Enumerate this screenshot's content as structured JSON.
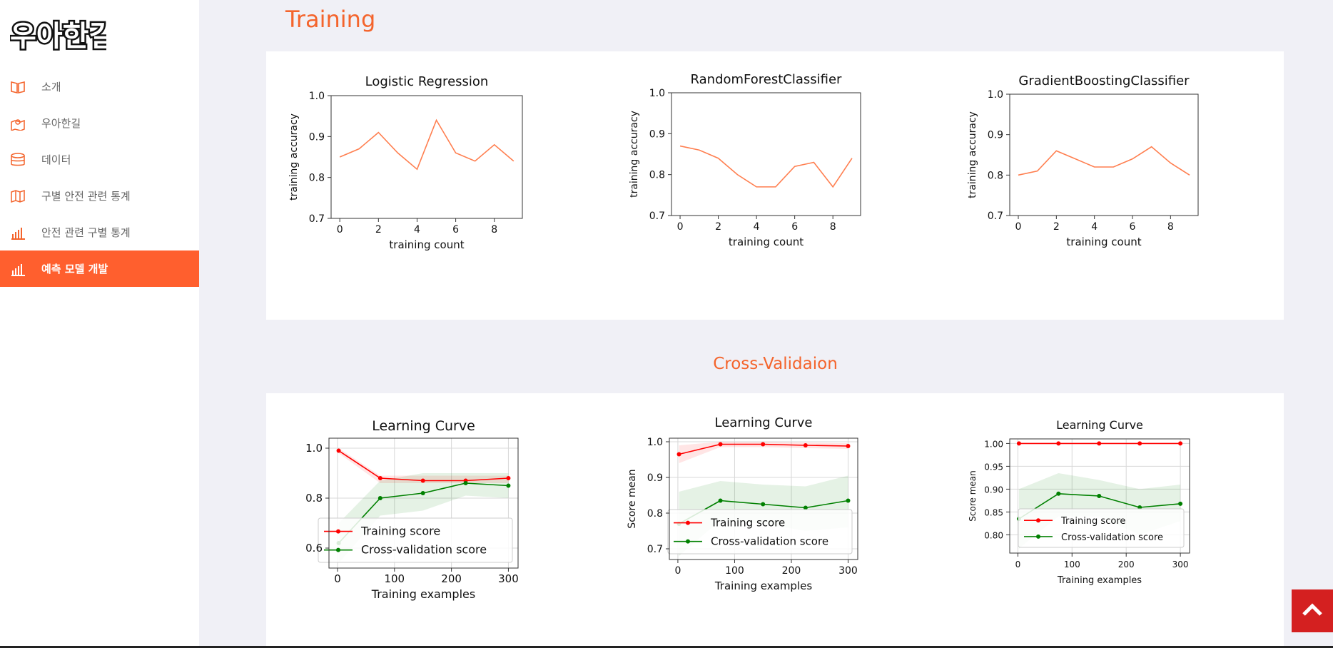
{
  "logo_text": "우아한길",
  "nav": [
    {
      "label": "소개",
      "icon": "book-icon"
    },
    {
      "label": "우아한길",
      "icon": "map-pin-icon"
    },
    {
      "label": "데이터",
      "icon": "database-icon"
    },
    {
      "label": "구별 안전 관련 통계",
      "icon": "map-icon"
    },
    {
      "label": "안전 관련 구별 통계",
      "icon": "bar-chart-icon"
    },
    {
      "label": "예측 모델 개발",
      "icon": "bar-chart-icon",
      "active": true
    }
  ],
  "sections": {
    "training": "Training",
    "cross_validation": "Cross-Validaion"
  },
  "colors": {
    "accent": "#ff5f2e",
    "line": "#ff7f50",
    "train": "#ff0000",
    "cv": "#008000",
    "top_button": "#d42020"
  },
  "chart_data": [
    {
      "type": "line",
      "title": "Logistic Regression",
      "xlabel": "training count",
      "ylabel": "training accuracy",
      "x": [
        0,
        1,
        2,
        3,
        4,
        5,
        6,
        7,
        8,
        9
      ],
      "values": [
        0.85,
        0.87,
        0.91,
        0.86,
        0.82,
        0.94,
        0.86,
        0.84,
        0.88,
        0.84
      ],
      "xlim": [
        -0.45,
        9.45
      ],
      "ylim": [
        0.7,
        1.0
      ],
      "xticks": [
        "0",
        "2",
        "4",
        "6",
        "8"
      ],
      "yticks": [
        "0.7",
        "0.8",
        "0.9",
        "1.0"
      ],
      "grid": false
    },
    {
      "type": "line",
      "title": "RandomForestClassifier",
      "xlabel": "training count",
      "ylabel": "training accuracy",
      "x": [
        0,
        1,
        2,
        3,
        4,
        5,
        6,
        7,
        8,
        9
      ],
      "values": [
        0.87,
        0.86,
        0.84,
        0.8,
        0.77,
        0.77,
        0.82,
        0.83,
        0.77,
        0.84
      ],
      "xlim": [
        -0.45,
        9.45
      ],
      "ylim": [
        0.7,
        1.0
      ],
      "xticks": [
        "0",
        "2",
        "4",
        "6",
        "8"
      ],
      "yticks": [
        "0.7",
        "0.8",
        "0.9",
        "1.0"
      ],
      "grid": false
    },
    {
      "type": "line",
      "title": "GradientBoostingClassifier",
      "xlabel": "training count",
      "ylabel": "training accuracy",
      "x": [
        0,
        1,
        2,
        3,
        4,
        5,
        6,
        7,
        8,
        9
      ],
      "values": [
        0.8,
        0.81,
        0.86,
        0.84,
        0.82,
        0.82,
        0.84,
        0.87,
        0.83,
        0.8
      ],
      "xlim": [
        -0.45,
        9.45
      ],
      "ylim": [
        0.7,
        1.0
      ],
      "xticks": [
        "0",
        "2",
        "4",
        "6",
        "8"
      ],
      "yticks": [
        "0.7",
        "0.8",
        "0.9",
        "1.0"
      ],
      "grid": false
    },
    {
      "type": "line",
      "title": "Learning Curve",
      "xlabel": "Training examples",
      "ylabel": "",
      "x": [
        2,
        75,
        150,
        225,
        300
      ],
      "series": [
        {
          "name": "Training score",
          "values": [
            0.99,
            0.88,
            0.87,
            0.87,
            0.88
          ],
          "band_low": [
            0.98,
            0.86,
            0.86,
            0.86,
            0.86
          ],
          "band_high": [
            1.0,
            0.89,
            0.89,
            0.89,
            0.89
          ]
        },
        {
          "name": "Cross-validation score",
          "values": [
            0.62,
            0.8,
            0.82,
            0.86,
            0.85
          ],
          "band_low": [
            0.54,
            0.73,
            0.75,
            0.81,
            0.8
          ],
          "band_high": [
            0.7,
            0.87,
            0.9,
            0.9,
            0.9
          ]
        }
      ],
      "xlim": [
        -15,
        317
      ],
      "ylim": [
        0.52,
        1.04
      ],
      "xticks": [
        "0",
        "100",
        "200",
        "300"
      ],
      "yticks": [
        "0.6",
        "0.8",
        "1.0"
      ],
      "grid": true,
      "legend": "lower-right"
    },
    {
      "type": "line",
      "title": "Learning Curve",
      "xlabel": "Training examples",
      "ylabel": "Score mean",
      "x": [
        2,
        75,
        150,
        225,
        300
      ],
      "series": [
        {
          "name": "Training score",
          "values": [
            0.965,
            0.993,
            0.993,
            0.99,
            0.988
          ],
          "band_low": [
            0.94,
            0.985,
            0.985,
            0.982,
            0.98
          ],
          "band_high": [
            0.99,
            1.0,
            1.0,
            0.998,
            0.996
          ]
        },
        {
          "name": "Cross-validation score",
          "values": [
            0.77,
            0.835,
            0.825,
            0.815,
            0.835
          ],
          "band_low": [
            0.68,
            0.78,
            0.77,
            0.75,
            0.76
          ],
          "band_high": [
            0.86,
            0.89,
            0.88,
            0.875,
            0.905
          ]
        }
      ],
      "xlim": [
        -15,
        317
      ],
      "ylim": [
        0.67,
        1.01
      ],
      "xticks": [
        "0",
        "100",
        "200",
        "300"
      ],
      "yticks": [
        "0.7",
        "0.8",
        "0.9",
        "1.0"
      ],
      "grid": true,
      "legend": "lower-right"
    },
    {
      "type": "line",
      "title": "Learning Curve",
      "xlabel": "Training examples",
      "ylabel": "Score mean",
      "x": [
        2,
        75,
        150,
        225,
        300
      ],
      "series": [
        {
          "name": "Training score",
          "values": [
            1.0,
            1.0,
            1.0,
            1.0,
            1.0
          ],
          "band_low": [
            1.0,
            1.0,
            1.0,
            1.0,
            1.0
          ],
          "band_high": [
            1.0,
            1.0,
            1.0,
            1.0,
            1.0
          ]
        },
        {
          "name": "Cross-validation score",
          "values": [
            0.835,
            0.89,
            0.885,
            0.86,
            0.868
          ],
          "band_low": [
            0.77,
            0.84,
            0.84,
            0.8,
            0.83
          ],
          "band_high": [
            0.9,
            0.935,
            0.92,
            0.9,
            0.91
          ]
        }
      ],
      "xlim": [
        -15,
        317
      ],
      "ylim": [
        0.76,
        1.01
      ],
      "xticks": [
        "0",
        "100",
        "200",
        "300"
      ],
      "yticks": [
        "0.80",
        "0.85",
        "0.90",
        "0.95",
        "1.00"
      ],
      "grid": true,
      "legend": "lower-right"
    }
  ]
}
